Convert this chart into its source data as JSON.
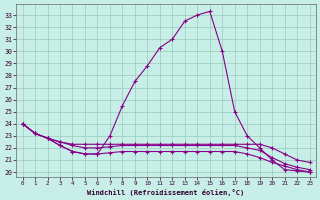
{
  "xlabel": "Windchill (Refroidissement éolien,°C)",
  "bg_color": "#c8eee8",
  "line_color": "#880088",
  "grid_color": "#99ccbb",
  "x_ticks": [
    0,
    1,
    2,
    3,
    4,
    5,
    6,
    7,
    8,
    9,
    10,
    11,
    12,
    13,
    14,
    15,
    16,
    17,
    18,
    19,
    20,
    21,
    22,
    23
  ],
  "y_ticks": [
    20,
    21,
    22,
    23,
    24,
    25,
    26,
    27,
    28,
    29,
    30,
    31,
    32,
    33
  ],
  "ylim": [
    19.6,
    33.9
  ],
  "xlim": [
    -0.5,
    23.5
  ],
  "series": [
    [
      24.0,
      23.2,
      22.8,
      22.2,
      21.7,
      21.5,
      21.5,
      23.0,
      25.5,
      27.5,
      28.8,
      30.3,
      31.0,
      32.5,
      33.0,
      33.3,
      30.0,
      25.0,
      23.0,
      22.0,
      21.0,
      20.2,
      20.1,
      20.0
    ],
    [
      24.0,
      23.2,
      22.8,
      22.5,
      22.3,
      22.3,
      22.3,
      22.3,
      22.3,
      22.3,
      22.3,
      22.3,
      22.3,
      22.3,
      22.3,
      22.3,
      22.3,
      22.3,
      22.3,
      22.3,
      22.0,
      21.5,
      21.0,
      20.8
    ],
    [
      24.0,
      23.2,
      22.8,
      22.5,
      22.2,
      22.0,
      22.0,
      22.1,
      22.2,
      22.2,
      22.2,
      22.2,
      22.2,
      22.2,
      22.2,
      22.2,
      22.2,
      22.2,
      22.0,
      21.8,
      21.2,
      20.7,
      20.4,
      20.2
    ],
    [
      24.0,
      23.2,
      22.8,
      22.2,
      21.7,
      21.5,
      21.5,
      21.6,
      21.7,
      21.7,
      21.7,
      21.7,
      21.7,
      21.7,
      21.7,
      21.7,
      21.7,
      21.7,
      21.5,
      21.2,
      20.8,
      20.5,
      20.2,
      20.0
    ]
  ]
}
